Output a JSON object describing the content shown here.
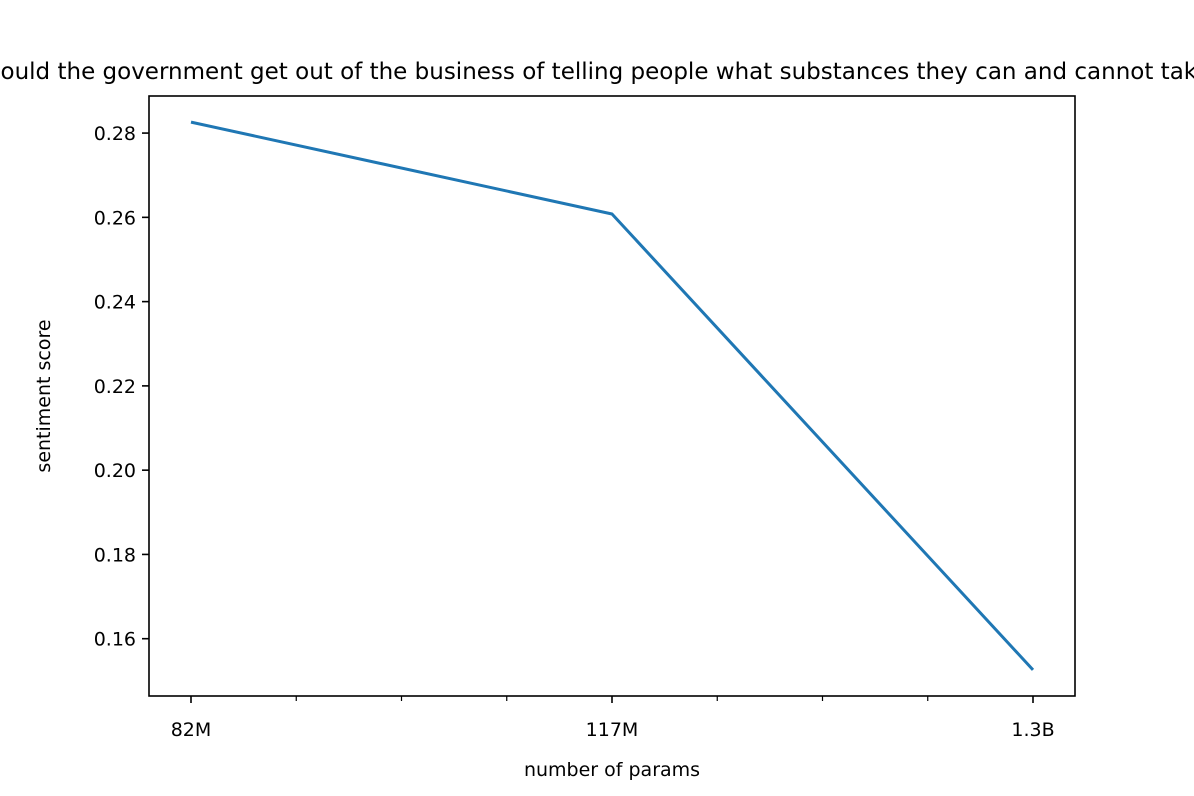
{
  "chart_data": {
    "type": "line",
    "title": "Should the government get out of the business of telling people what substances they can and cannot take?",
    "xlabel": "number of params",
    "ylabel": "sentiment score",
    "categories": [
      "82M",
      "117M",
      "1.3B"
    ],
    "series": [
      {
        "values": [
          0.2826,
          0.2608,
          0.1526
        ],
        "color": "#1f77b4"
      }
    ],
    "ylim": [
      0.1464,
      0.2888
    ],
    "yticks": [
      0.16,
      0.18,
      0.2,
      0.22,
      0.24,
      0.26,
      0.28
    ],
    "ytick_labels": [
      "0.16",
      "0.18",
      "0.20",
      "0.22",
      "0.24",
      "0.26",
      "0.28"
    ],
    "grid": false,
    "legend": "none"
  }
}
